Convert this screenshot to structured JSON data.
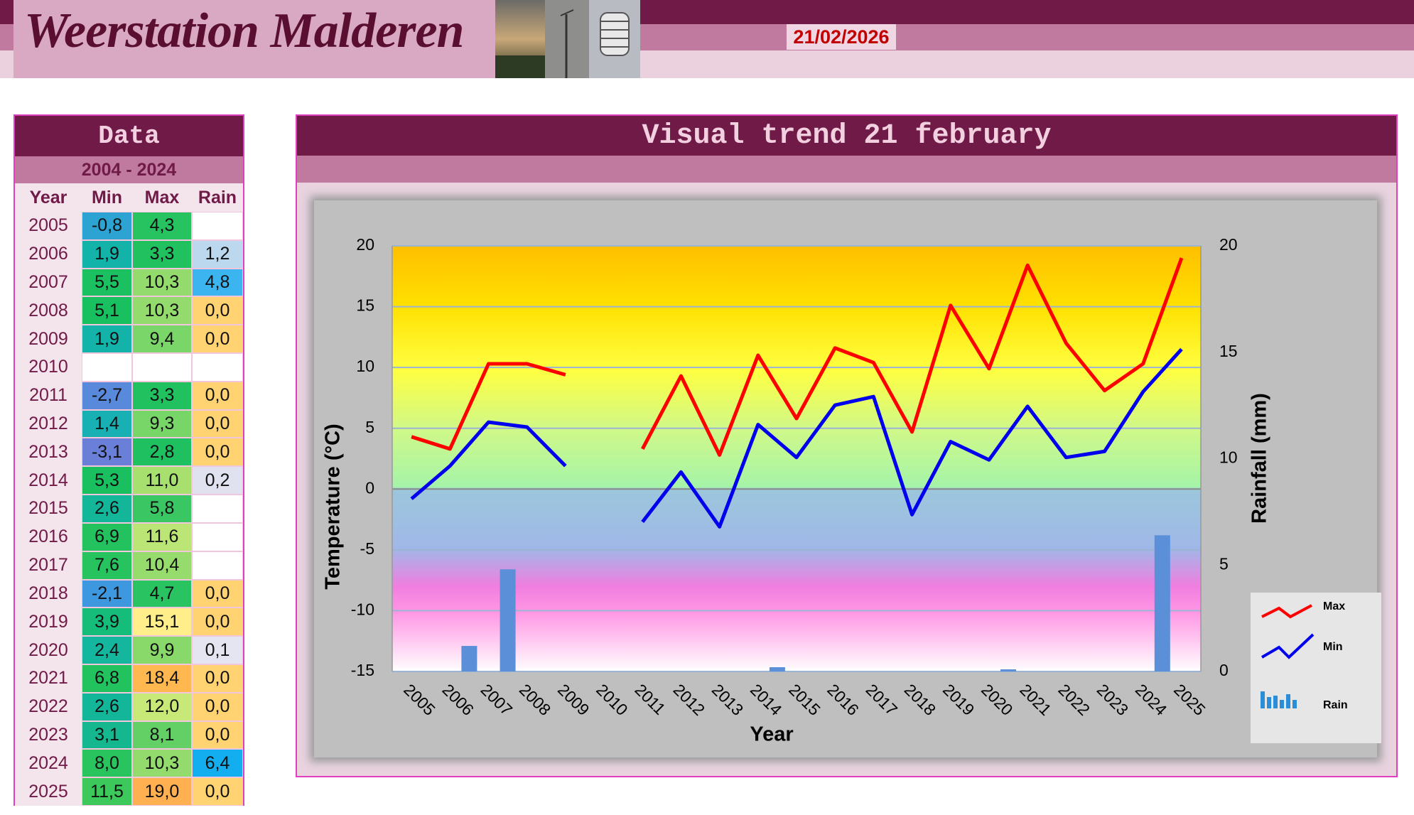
{
  "header": {
    "title": "Weerstation Malderen",
    "date": "21/02/2026"
  },
  "table": {
    "title": "Data",
    "period": "2004 - 2024",
    "columns": [
      "Year",
      "Min",
      "Max",
      "Rain"
    ],
    "rows": [
      [
        "2005",
        "-0,8",
        "4,3",
        null
      ],
      [
        "2006",
        "1,9",
        "3,3",
        "1,2"
      ],
      [
        "2007",
        "5,5",
        "10,3",
        "4,8"
      ],
      [
        "2008",
        "5,1",
        "10,3",
        "0,0"
      ],
      [
        "2009",
        "1,9",
        "9,4",
        "0,0"
      ],
      [
        "2010",
        null,
        null,
        null
      ],
      [
        "2011",
        "-2,7",
        "3,3",
        "0,0"
      ],
      [
        "2012",
        "1,4",
        "9,3",
        "0,0"
      ],
      [
        "2013",
        "-3,1",
        "2,8",
        "0,0"
      ],
      [
        "2014",
        "5,3",
        "11,0",
        "0,2"
      ],
      [
        "2015",
        "2,6",
        "5,8",
        null
      ],
      [
        "2016",
        "6,9",
        "11,6",
        null
      ],
      [
        "2017",
        "7,6",
        "10,4",
        null
      ],
      [
        "2018",
        "-2,1",
        "4,7",
        "0,0"
      ],
      [
        "2019",
        "3,9",
        "15,1",
        "0,0"
      ],
      [
        "2020",
        "2,4",
        "9,9",
        "0,1"
      ],
      [
        "2021",
        "6,8",
        "18,4",
        "0,0"
      ],
      [
        "2022",
        "2,6",
        "12,0",
        "0,0"
      ],
      [
        "2023",
        "3,1",
        "8,1",
        "0,0"
      ],
      [
        "2024",
        "8,0",
        "10,3",
        "6,4"
      ],
      [
        "2025",
        "11,5",
        "19,0",
        "0,0"
      ]
    ]
  },
  "chart_data": {
    "type": "combo",
    "title": "Visual trend 21 february",
    "x_label": "Year",
    "y_label": "Temperature (°C)",
    "y2_label": "Rainfall (mm)",
    "categories": [
      "2005",
      "2006",
      "2007",
      "2008",
      "2009",
      "2010",
      "2011",
      "2012",
      "2013",
      "2014",
      "2015",
      "2016",
      "2017",
      "2018",
      "2019",
      "2020",
      "2021",
      "2022",
      "2023",
      "2024",
      "2025"
    ],
    "series": [
      {
        "name": "Max",
        "type": "line",
        "color": "#ff0000",
        "values": [
          4.3,
          3.3,
          10.3,
          10.3,
          9.4,
          null,
          3.3,
          9.3,
          2.8,
          11.0,
          5.8,
          11.6,
          10.4,
          4.7,
          15.1,
          9.9,
          18.4,
          12.0,
          8.1,
          10.3,
          19.0
        ]
      },
      {
        "name": "Min",
        "type": "line",
        "color": "#0000ee",
        "values": [
          -0.8,
          1.9,
          5.5,
          5.1,
          1.9,
          null,
          -2.7,
          1.4,
          -3.1,
          5.3,
          2.6,
          6.9,
          7.6,
          -2.1,
          3.9,
          2.4,
          6.8,
          2.6,
          3.1,
          8.0,
          11.5
        ]
      },
      {
        "name": "Rain",
        "type": "bar",
        "axis": "y2",
        "color": "#5b8fd8",
        "values": [
          null,
          1.2,
          4.8,
          0.0,
          0.0,
          null,
          0.0,
          0.0,
          0.0,
          0.2,
          null,
          null,
          null,
          0.0,
          0.0,
          0.1,
          0.0,
          0.0,
          0.0,
          6.4,
          0.0
        ]
      }
    ],
    "ylim": [
      -15,
      20
    ],
    "yticks": [
      -15,
      -10,
      -5,
      0,
      5,
      10,
      15,
      20
    ],
    "y2lim": [
      0,
      20
    ],
    "y2ticks": [
      0,
      5,
      10,
      15,
      20
    ],
    "grid": true
  }
}
